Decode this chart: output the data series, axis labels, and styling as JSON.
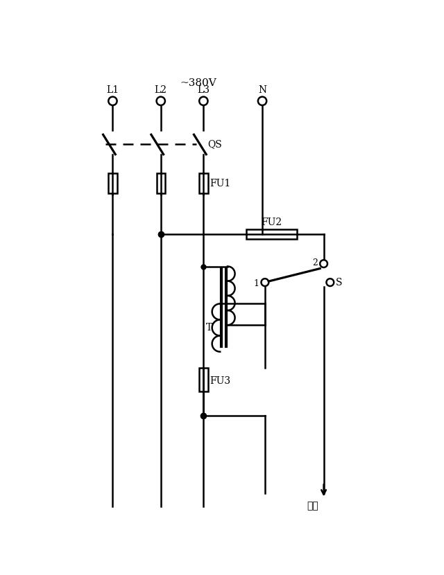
{
  "bg_color": "#ffffff",
  "line_color": "#000000",
  "fig_width": 6.4,
  "fig_height": 8.3,
  "labels": {
    "voltage": "~380V",
    "L1": "L1",
    "L2": "L2",
    "L3": "L3",
    "N": "N",
    "QS": "QS",
    "FU1": "FU1",
    "FU2": "FU2",
    "FU3": "FU3",
    "T": "T",
    "S": "S",
    "label1": "1",
    "label2": "2",
    "output": "输出"
  }
}
